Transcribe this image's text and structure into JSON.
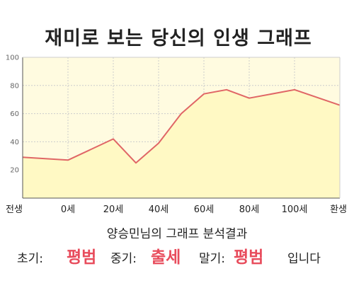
{
  "chart_data": {
    "type": "area",
    "title": "재미로 보는 당신의 인생 그래프",
    "xlabel": "",
    "ylabel": "",
    "ylim": [
      0,
      100
    ],
    "yticks": [
      20,
      40,
      60,
      80,
      100
    ],
    "x_ticks": [
      "전생",
      "0세",
      "20세",
      "40세",
      "60세",
      "80세",
      "100세",
      "환생"
    ],
    "series": [
      {
        "points": [
          {
            "x": 0,
            "y": 29
          },
          {
            "x": 1,
            "y": 27
          },
          {
            "x": 2,
            "y": 42
          },
          {
            "x": 2.5,
            "y": 25
          },
          {
            "x": 3,
            "y": 39
          },
          {
            "x": 3.5,
            "y": 60
          },
          {
            "x": 4,
            "y": 74
          },
          {
            "x": 4.5,
            "y": 77
          },
          {
            "x": 5,
            "y": 71
          },
          {
            "x": 6,
            "y": 77
          },
          {
            "x": 7,
            "y": 66
          }
        ]
      }
    ],
    "grid": true,
    "colors": {
      "line": "#e06666",
      "fill": "#fff9c4",
      "plot_bg": "#fffbe0",
      "grid": "#cccccc",
      "axis": "#555555"
    }
  },
  "analysis": {
    "subtitle": "양승민님의 그래프 분석결과",
    "early_label": "초기:",
    "early_value": "평범",
    "middle_label": "중기:",
    "middle_value": "출세",
    "late_label": "말기:",
    "late_value": "평범",
    "ending": "입니다",
    "highlight_color": "#e84c5c"
  }
}
